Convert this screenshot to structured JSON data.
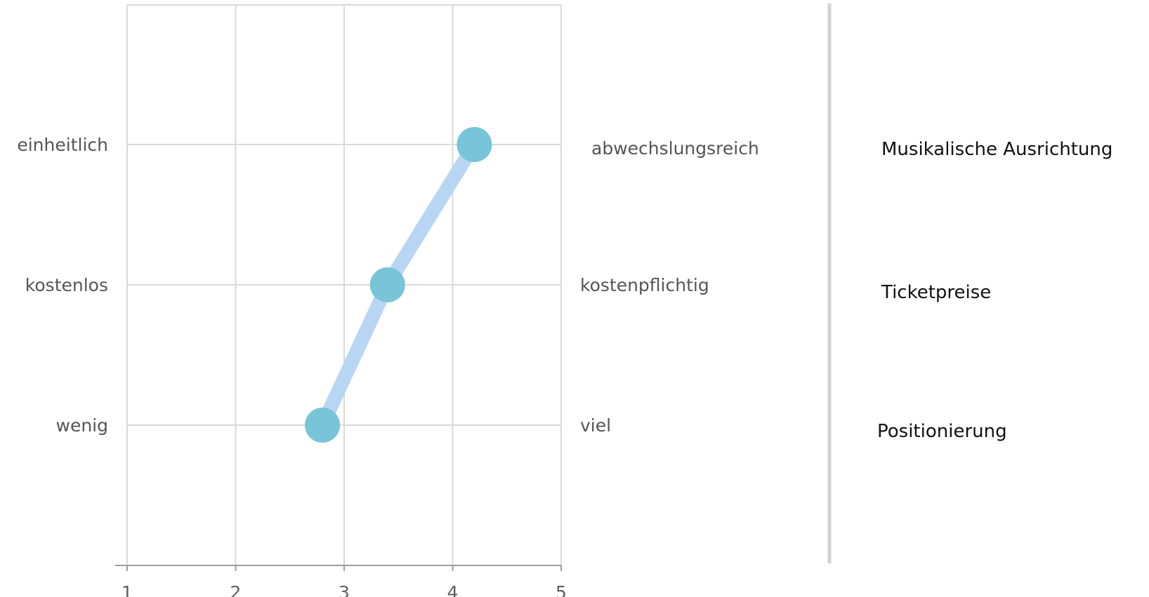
{
  "chart_data": {
    "type": "line",
    "x_ticks": [
      "1",
      "2",
      "3",
      "4",
      "5"
    ],
    "xlim": [
      1,
      5
    ],
    "grid": true,
    "colors": {
      "line": "#b8d6f3",
      "marker": "#78c4d8"
    },
    "rows": [
      {
        "left_label": "einheitlich",
        "right_label": "abwechslungsreich",
        "criterion": "Musikalische Ausrichtung",
        "value": 4.2
      },
      {
        "left_label": "kostenlos",
        "right_label": "kostenpflichtig",
        "criterion": "Ticketpreise",
        "value": 3.4
      },
      {
        "left_label": "wenig",
        "right_label": "viel",
        "criterion": "Positionierung",
        "value": 2.8
      }
    ]
  }
}
